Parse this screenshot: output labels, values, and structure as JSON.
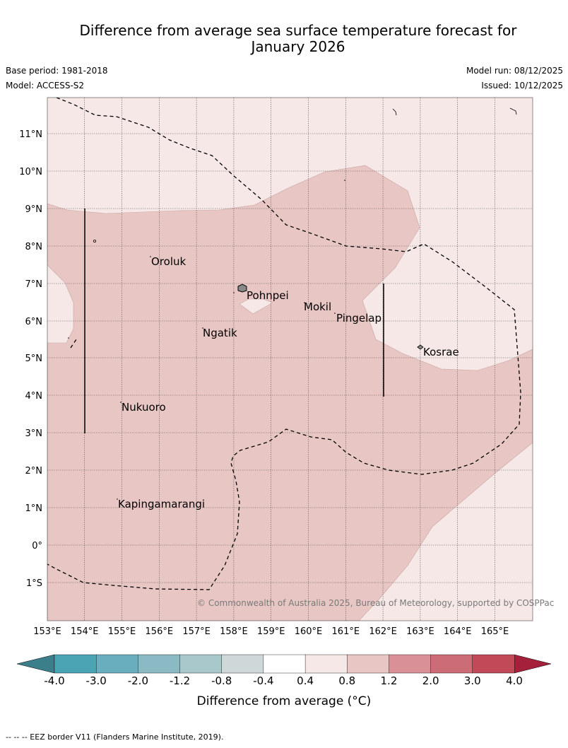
{
  "header": {
    "title_line1": "Difference from average sea surface temperature forecast for",
    "title_line2": "January 2026",
    "base_period": "Base period: 1981-2018",
    "model": "Model: ACCESS-S2",
    "model_run": "Model run: 08/12/2025",
    "issued": "Issued: 10/12/2025"
  },
  "map": {
    "lon_labels": [
      "153°E",
      "154°E",
      "155°E",
      "156°E",
      "157°E",
      "158°E",
      "159°E",
      "160°E",
      "161°E",
      "162°E",
      "163°E",
      "164°E",
      "165°E"
    ],
    "lat_labels": [
      "11°N",
      "10°N",
      "9°N",
      "8°N",
      "7°N",
      "6°N",
      "5°N",
      "4°N",
      "3°N",
      "2°N",
      "1°N",
      "0°",
      "1°S"
    ],
    "places": [
      "Oroluk",
      "Pohnpei",
      "Mokil",
      "Pingelap",
      "Ngatik",
      "Kosrae",
      "Nukuoro",
      "Kapingamarangi"
    ],
    "copyright": "© Commonwealth of Australia 2025, Bureau of Meteorology, supported by COSPPac",
    "colors": {
      "band_0_4_0_8": "#f5e8e7",
      "band_0_8_1_2": "#e8c6c3"
    }
  },
  "colorbar": {
    "ticks": [
      "-4.0",
      "-3.0",
      "-2.0",
      "-1.2",
      "-0.8",
      "-0.4",
      "0.4",
      "0.8",
      "1.2",
      "2.0",
      "3.0",
      "4.0"
    ],
    "colors": [
      "#4aa4b4",
      "#69aebe",
      "#8bbac4",
      "#a9c8cc",
      "#cfd8d9",
      "#ffffff",
      "#f5e8e7",
      "#e8c6c3",
      "#d99097",
      "#cc6c76",
      "#c14958"
    ],
    "under_color": "#3b7f8a",
    "over_color": "#a5213b",
    "label": "Difference from average (°C)"
  },
  "footer": {
    "eez_note": "--  --  -- EEZ border V11 (Flanders Marine Institute, 2019)."
  }
}
